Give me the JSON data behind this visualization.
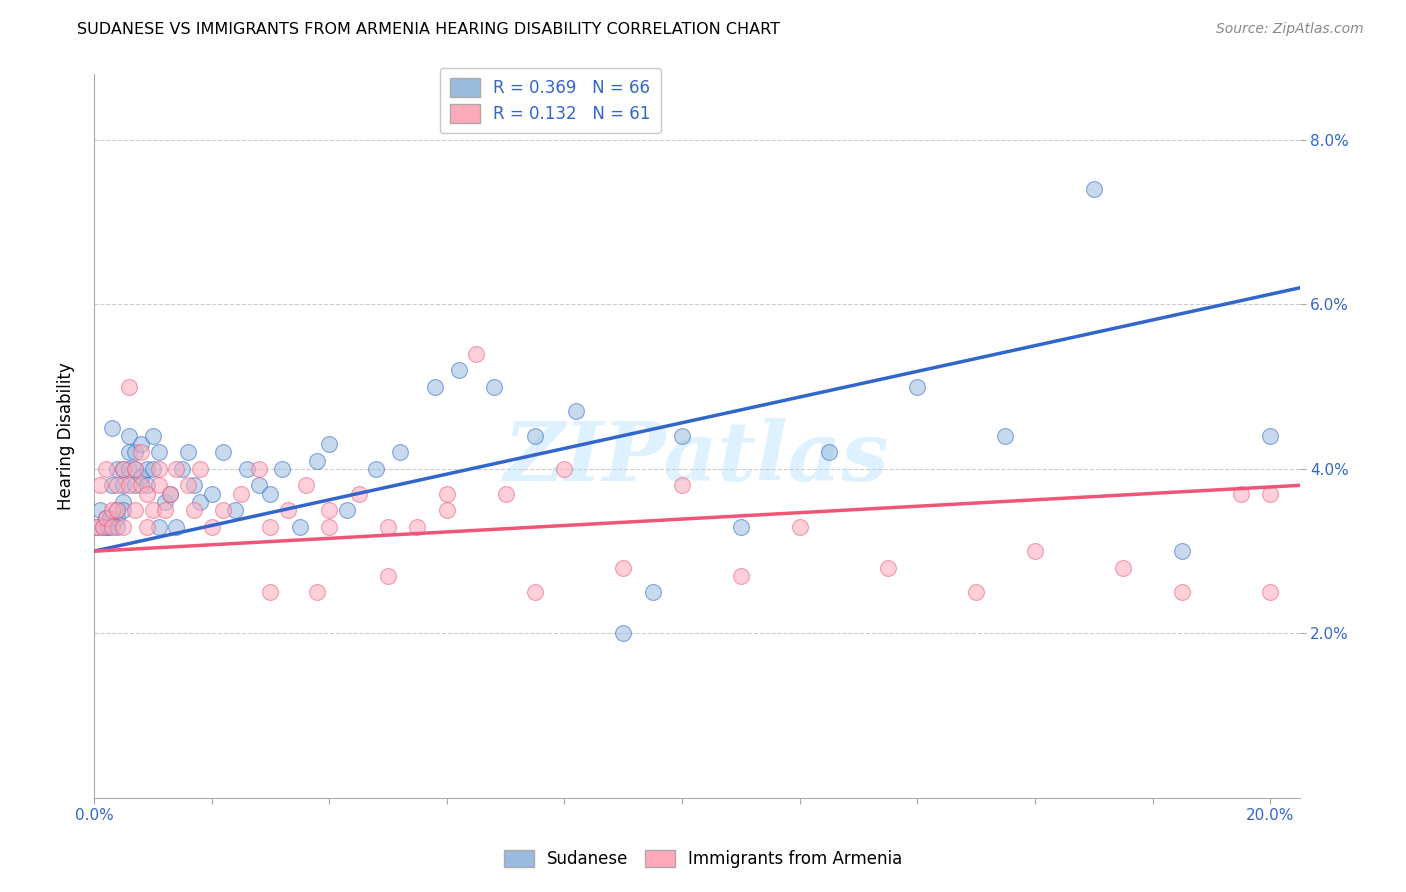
{
  "title": "SUDANESE VS IMMIGRANTS FROM ARMENIA HEARING DISABILITY CORRELATION CHART",
  "source": "Source: ZipAtlas.com",
  "ylabel": "Hearing Disability",
  "color_blue": "#99BBDD",
  "color_pink": "#FFAABB",
  "color_line_blue": "#3366CC",
  "color_line_pink": "#EE5577",
  "color_grid": "#CCCCCC",
  "watermark": "ZIPatlas",
  "legend_r1": "R = 0.369",
  "legend_n1": "N = 66",
  "legend_r2": "R = 0.132",
  "legend_n2": "N = 61",
  "legend_label1": "Sudanese",
  "legend_label2": "Immigrants from Armenia",
  "xlim": [
    0.0,
    0.205
  ],
  "ylim": [
    0.0,
    0.088
  ],
  "blue_line_x": [
    0.0,
    0.205
  ],
  "blue_line_y": [
    0.03,
    0.062
  ],
  "pink_line_x": [
    0.0,
    0.205
  ],
  "pink_line_y": [
    0.03,
    0.038
  ],
  "sudanese_x": [
    0.0005,
    0.001,
    0.0015,
    0.002,
    0.0022,
    0.0025,
    0.0028,
    0.003,
    0.003,
    0.004,
    0.004,
    0.004,
    0.004,
    0.005,
    0.005,
    0.005,
    0.005,
    0.006,
    0.006,
    0.006,
    0.007,
    0.007,
    0.007,
    0.008,
    0.008,
    0.009,
    0.009,
    0.01,
    0.01,
    0.011,
    0.011,
    0.012,
    0.013,
    0.014,
    0.015,
    0.016,
    0.017,
    0.018,
    0.02,
    0.022,
    0.024,
    0.026,
    0.028,
    0.03,
    0.032,
    0.035,
    0.038,
    0.04,
    0.043,
    0.048,
    0.052,
    0.058,
    0.062,
    0.068,
    0.075,
    0.082,
    0.09,
    0.095,
    0.1,
    0.11,
    0.125,
    0.14,
    0.155,
    0.17,
    0.185,
    0.2
  ],
  "sudanese_y": [
    0.033,
    0.035,
    0.033,
    0.034,
    0.033,
    0.033,
    0.034,
    0.045,
    0.038,
    0.034,
    0.04,
    0.033,
    0.035,
    0.036,
    0.04,
    0.038,
    0.035,
    0.044,
    0.042,
    0.04,
    0.042,
    0.04,
    0.038,
    0.039,
    0.043,
    0.04,
    0.038,
    0.044,
    0.04,
    0.042,
    0.033,
    0.036,
    0.037,
    0.033,
    0.04,
    0.042,
    0.038,
    0.036,
    0.037,
    0.042,
    0.035,
    0.04,
    0.038,
    0.037,
    0.04,
    0.033,
    0.041,
    0.043,
    0.035,
    0.04,
    0.042,
    0.05,
    0.052,
    0.05,
    0.044,
    0.047,
    0.02,
    0.025,
    0.044,
    0.033,
    0.042,
    0.05,
    0.044,
    0.074,
    0.03,
    0.044
  ],
  "armenia_x": [
    0.0005,
    0.001,
    0.0015,
    0.002,
    0.002,
    0.003,
    0.003,
    0.004,
    0.004,
    0.005,
    0.005,
    0.006,
    0.006,
    0.007,
    0.007,
    0.008,
    0.008,
    0.009,
    0.009,
    0.01,
    0.011,
    0.011,
    0.012,
    0.013,
    0.014,
    0.016,
    0.017,
    0.018,
    0.02,
    0.022,
    0.025,
    0.028,
    0.03,
    0.033,
    0.036,
    0.04,
    0.045,
    0.05,
    0.055,
    0.06,
    0.065,
    0.075,
    0.08,
    0.09,
    0.1,
    0.11,
    0.12,
    0.135,
    0.15,
    0.16,
    0.175,
    0.185,
    0.195,
    0.2,
    0.2,
    0.03,
    0.038,
    0.04,
    0.05,
    0.06,
    0.07
  ],
  "armenia_y": [
    0.033,
    0.038,
    0.033,
    0.034,
    0.04,
    0.035,
    0.033,
    0.038,
    0.035,
    0.04,
    0.033,
    0.05,
    0.038,
    0.04,
    0.035,
    0.038,
    0.042,
    0.033,
    0.037,
    0.035,
    0.038,
    0.04,
    0.035,
    0.037,
    0.04,
    0.038,
    0.035,
    0.04,
    0.033,
    0.035,
    0.037,
    0.04,
    0.033,
    0.035,
    0.038,
    0.035,
    0.037,
    0.033,
    0.033,
    0.035,
    0.054,
    0.025,
    0.04,
    0.028,
    0.038,
    0.027,
    0.033,
    0.028,
    0.025,
    0.03,
    0.028,
    0.025,
    0.037,
    0.037,
    0.025,
    0.025,
    0.025,
    0.033,
    0.027,
    0.037,
    0.037
  ]
}
